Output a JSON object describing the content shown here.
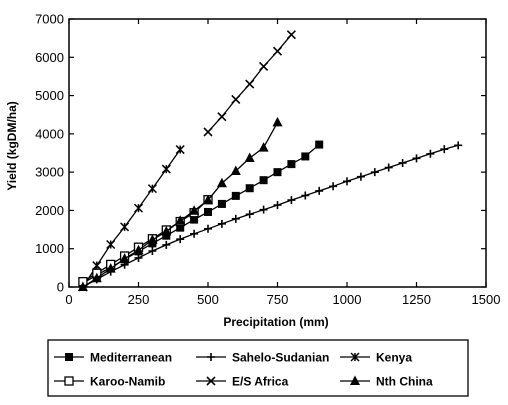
{
  "chart_data": {
    "type": "line",
    "title": "",
    "xlabel": "Precipitation (mm)",
    "ylabel": "Yield (kgDM/ha)",
    "xlim": [
      0,
      1500
    ],
    "ylim": [
      0,
      7000
    ],
    "x_ticks": [
      0,
      250,
      500,
      750,
      1000,
      1250,
      1500
    ],
    "y_ticks": [
      0,
      1000,
      2000,
      3000,
      4000,
      5000,
      6000,
      7000
    ],
    "x_tick_labels": [
      "0",
      "250",
      "500",
      "750",
      "1000",
      "1250",
      "1500"
    ],
    "y_tick_labels": [
      "0",
      "1000",
      "2000",
      "3000",
      "4000",
      "5000",
      "6000",
      "7000"
    ],
    "grid": false,
    "legend_placement": "bottom",
    "series": [
      {
        "name": "Mediterranean",
        "marker": "filled-square",
        "x": [
          50,
          100,
          150,
          200,
          250,
          300,
          350,
          400,
          450,
          500,
          550,
          600,
          650,
          700,
          750,
          800,
          850,
          900
        ],
        "y": [
          100,
          310,
          510,
          720,
          930,
          1140,
          1340,
          1550,
          1760,
          1960,
          2170,
          2380,
          2580,
          2790,
          3000,
          3210,
          3410,
          3720
        ]
      },
      {
        "name": "Sahelo-Sudanian",
        "marker": "plus",
        "x": [
          50,
          100,
          150,
          200,
          250,
          300,
          350,
          400,
          450,
          500,
          550,
          600,
          650,
          700,
          750,
          800,
          850,
          900,
          950,
          1000,
          1050,
          1100,
          1150,
          1200,
          1250,
          1300,
          1350,
          1400
        ],
        "y": [
          0,
          200,
          400,
          580,
          760,
          940,
          1100,
          1250,
          1390,
          1520,
          1650,
          1780,
          1900,
          2020,
          2140,
          2270,
          2390,
          2510,
          2630,
          2760,
          2880,
          3000,
          3120,
          3240,
          3360,
          3480,
          3600,
          3700
        ]
      },
      {
        "name": "Kenya",
        "marker": "asterisk",
        "x": [
          50,
          100,
          150,
          200,
          250,
          300,
          350,
          400
        ],
        "y": [
          0,
          560,
          1110,
          1570,
          2060,
          2570,
          3080,
          3590
        ]
      },
      {
        "name": "Karoo-Namib",
        "marker": "open-square",
        "x": [
          50,
          100,
          150,
          200,
          250,
          300,
          350,
          400,
          450,
          500
        ],
        "y": [
          140,
          360,
          590,
          810,
          1040,
          1260,
          1490,
          1710,
          1940,
          2280
        ]
      },
      {
        "name": "E/S Africa",
        "marker": "x",
        "x": [
          500,
          550,
          600,
          650,
          700,
          750,
          800
        ],
        "y": [
          4050,
          4450,
          4900,
          5300,
          5760,
          6160,
          6590
        ]
      },
      {
        "name": "Nth China",
        "marker": "filled-triangle",
        "x": [
          50,
          100,
          150,
          200,
          250,
          300,
          350,
          400,
          450,
          500,
          550,
          600,
          650,
          700,
          750
        ],
        "y": [
          0,
          230,
          480,
          740,
          960,
          1230,
          1450,
          1730,
          1990,
          2270,
          2710,
          3030,
          3370,
          3640,
          4300
        ]
      }
    ]
  }
}
